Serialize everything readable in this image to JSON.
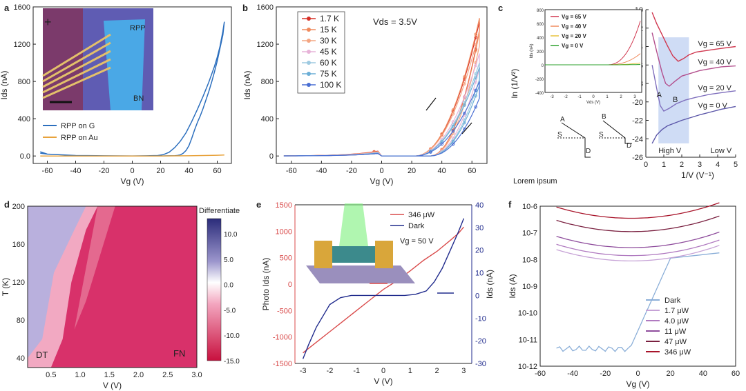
{
  "panels": {
    "a": {
      "letter": "a",
      "chart_data": {
        "type": "line",
        "xlabel": "Vg (V)",
        "ylabel": "Ids (nA)",
        "xlim": [
          -70,
          70
        ],
        "ylim": [
          -80,
          1600
        ],
        "xticks": [
          -60,
          -40,
          -20,
          0,
          20,
          40,
          60
        ],
        "yticks": [
          0,
          400,
          800,
          1200,
          1600
        ],
        "series": [
          {
            "name": "RPP on G",
            "color": "#2c6fbe",
            "x": [
              -65,
              -60,
              -40,
              -20,
              0,
              10,
              18,
              22,
              26,
              30,
              34,
              38,
              42,
              46,
              50,
              54,
              58,
              60,
              62,
              64,
              65,
              64,
              62,
              60,
              58,
              56,
              54,
              52,
              50,
              48,
              46,
              44,
              42,
              40,
              38,
              36,
              34,
              32,
              30,
              26,
              20,
              10,
              0,
              -20,
              -40,
              -60,
              -65
            ],
            "y": [
              30,
              20,
              5,
              2,
              1,
              2,
              5,
              15,
              40,
              90,
              160,
              250,
              370,
              500,
              640,
              790,
              960,
              1060,
              1180,
              1340,
              1440,
              1300,
              1160,
              1020,
              900,
              790,
              690,
              600,
              510,
              430,
              360,
              280,
              190,
              110,
              60,
              30,
              12,
              6,
              3,
              2,
              1,
              0,
              0,
              0,
              5,
              20,
              45
            ]
          },
          {
            "name": "RPP on Au",
            "color": "#e8a33c",
            "x": [
              -65,
              -40,
              -20,
              0,
              20,
              40,
              50,
              60,
              65
            ],
            "y": [
              0,
              0,
              0,
              0,
              0,
              2,
              5,
              8,
              10
            ]
          }
        ],
        "inset": {
          "labels": [
            "RPP",
            "BN"
          ]
        }
      }
    },
    "b": {
      "letter": "b",
      "annotation": "Vds = 3.5V",
      "chart_data": {
        "type": "line",
        "xlabel": "Vg (V)",
        "ylabel": "Ids (nA)",
        "xlim": [
          -70,
          70
        ],
        "ylim": [
          -80,
          1600
        ],
        "xticks": [
          -60,
          -40,
          -20,
          0,
          20,
          40,
          60
        ],
        "yticks": [
          0,
          400,
          800,
          1200,
          1600
        ],
        "series": [
          {
            "name": "1.7 K",
            "color": "#d73027",
            "peak": 1440,
            "hyst": 0.75
          },
          {
            "name": "15 K",
            "color": "#f08a5d",
            "peak": 1480,
            "hyst": 0.72
          },
          {
            "name": "30 K",
            "color": "#f4a582",
            "peak": 1350,
            "hyst": 0.7
          },
          {
            "name": "45 K",
            "color": "#e7b3d8",
            "peak": 1100,
            "hyst": 0.68
          },
          {
            "name": "60 K",
            "color": "#9ecae1",
            "peak": 1000,
            "hyst": 0.66
          },
          {
            "name": "75 K",
            "color": "#6baed6",
            "peak": 950,
            "hyst": 0.64
          },
          {
            "name": "100 K",
            "color": "#4a6fd3",
            "peak": 800,
            "hyst": 0.62
          }
        ]
      }
    },
    "c": {
      "letter": "c",
      "bottom_text": "Lorem ipsum",
      "chart_data": {
        "type": "line",
        "xlabel": "1/V (V⁻¹)",
        "ylabel": "ln (1/V²)",
        "xlim": [
          0,
          5
        ],
        "ylim": [
          -26,
          -10
        ],
        "xticks": [
          0,
          1,
          2,
          3,
          4,
          5
        ],
        "yticks": [
          -10,
          -12,
          -14,
          -16,
          -18,
          -20,
          -22,
          -24,
          -26
        ],
        "series": [
          {
            "name": "Vg = 65 V",
            "color": "#d0364e",
            "x": [
              0.35,
              0.6,
              0.9,
              1.2,
              1.5,
              1.8,
              2.1,
              2.4,
              2.8,
              3.5,
              4.2,
              5.0
            ],
            "y": [
              -10.3,
              -11.5,
              -12.7,
              -13.9,
              -15.0,
              -15.6,
              -15.3,
              -14.9,
              -14.6,
              -14.4,
              -14.2,
              -14.0
            ]
          },
          {
            "name": "Vg = 40 V",
            "color": "#b34f8d",
            "x": [
              0.35,
              0.6,
              0.9,
              1.1,
              1.3,
              1.6,
              2.0,
              2.5,
              3.0,
              3.6,
              4.2,
              5.0
            ],
            "y": [
              -12.5,
              -14.5,
              -16.8,
              -18.0,
              -18.3,
              -17.8,
              -17.2,
              -16.9,
              -16.6,
              -16.4,
              -16.2,
              -16.1
            ]
          },
          {
            "name": "Vg = 20 V",
            "color": "#7f6fbd",
            "x": [
              0.35,
              0.6,
              0.8,
              1.0,
              1.3,
              1.7,
              2.2,
              2.8,
              3.5,
              4.2,
              5.0
            ],
            "y": [
              -16.0,
              -18.5,
              -20.4,
              -21.0,
              -20.7,
              -20.2,
              -19.8,
              -19.5,
              -19.2,
              -19.0,
              -18.8
            ]
          },
          {
            "name": "Vg = 0 V",
            "color": "#5a55a8",
            "x": [
              0.35,
              0.6,
              0.9,
              1.2,
              1.6,
              2.0,
              2.5,
              3.0,
              3.6,
              4.2,
              5.0
            ],
            "y": [
              -24.5,
              -23.6,
              -23.0,
              -22.6,
              -22.3,
              -22.0,
              -21.7,
              -21.4,
              -21.1,
              -20.8,
              -20.5
            ]
          }
        ],
        "region": {
          "label_high": "High V",
          "label_low": "Low V",
          "x_range": [
            0.7,
            2.4
          ]
        },
        "markers": {
          "A": "A",
          "B": "B",
          "S": "S",
          "D": "D"
        },
        "inset": {
          "xlabel": "Vds (V)",
          "ylabel": "Ids (nA)",
          "yticks": [
            800,
            600,
            400,
            200,
            0,
            -200,
            -400
          ],
          "xticks": [
            -3,
            -2,
            -1,
            0,
            1,
            2,
            3
          ],
          "legend": [
            "Vg = 65 V",
            "Vg = 40 V",
            "Vg = 20 V",
            "Vg = 0 V"
          ],
          "colors": [
            "#d0364e",
            "#f08a5d",
            "#e8c33c",
            "#2ca02c"
          ]
        }
      }
    },
    "d": {
      "letter": "d",
      "chart_data": {
        "type": "heatmap",
        "xlabel": "V (V)",
        "ylabel": "T (K)",
        "xlim": [
          0.1,
          3.0
        ],
        "ylim": [
          30,
          200
        ],
        "xticks": [
          0.5,
          1.0,
          1.5,
          2.0,
          2.5,
          3.0
        ],
        "yticks": [
          40,
          80,
          120,
          160,
          200
        ],
        "colorbar": {
          "title": "Differentiate",
          "ticks": [
            10.0,
            5.0,
            0.0,
            -5.0,
            -10.0,
            -15.0
          ],
          "range": [
            -15,
            13
          ]
        },
        "regions": {
          "left": "DT",
          "right": "FN"
        }
      }
    },
    "e": {
      "letter": "e",
      "annotation": "Vg = 50 V",
      "chart_data": {
        "type": "line",
        "xlabel": "V (V)",
        "ylabel": "Photo Ids (nA)",
        "y2label": "Ids (nA)",
        "xlim": [
          -3.3,
          3.3
        ],
        "ylim": [
          -1500,
          1500
        ],
        "y2lim": [
          -30,
          40
        ],
        "xticks": [
          -3,
          -2,
          -1,
          0,
          1,
          2,
          3
        ],
        "yticks": [
          -1500,
          -1000,
          -500,
          0,
          500,
          1000,
          1500
        ],
        "y2ticks": [
          -30,
          -20,
          -10,
          0,
          10,
          20,
          30,
          40
        ],
        "series": [
          {
            "name": "346 μW",
            "color": "#d94a4a",
            "axis": "left",
            "x": [
              -3,
              -2.5,
              -2,
              -1.5,
              -1,
              -0.5,
              0,
              0.5,
              1,
              1.5,
              2,
              2.5,
              2.8,
              3
            ],
            "y": [
              -1300,
              -1100,
              -900,
              -700,
              -500,
              -300,
              -100,
              60,
              250,
              450,
              620,
              830,
              960,
              1080
            ]
          },
          {
            "name": "Dark",
            "color": "#1f2a8c",
            "axis": "right",
            "x": [
              -3,
              -2.8,
              -2.5,
              -2.2,
              -2,
              -1.6,
              -1.2,
              -0.8,
              0,
              0.8,
              1.2,
              1.6,
              1.9,
              2.2,
              2.5,
              2.8,
              3
            ],
            "y": [
              -28,
              -22,
              -14,
              -8,
              -4,
              -1,
              0,
              0,
              0,
              0,
              0.5,
              2,
              6,
              12,
              20,
              28,
              34
            ]
          }
        ]
      }
    },
    "f": {
      "letter": "f",
      "chart_data": {
        "type": "line",
        "xlabel": "Vg (V)",
        "ylabel": "Ids (A)",
        "xlim": [
          -60,
          60
        ],
        "ylim_log10": [
          -12,
          -6
        ],
        "xticks": [
          -60,
          -40,
          -20,
          0,
          20,
          40,
          60
        ],
        "yticklabels": [
          "10-6",
          "10-7",
          "10-8",
          "10-9",
          "10-10",
          "10-11",
          "10-12"
        ],
        "series": [
          {
            "name": "Dark",
            "color": "#8aaed8"
          },
          {
            "name": "1.7 μW",
            "color": "#c6a2d6"
          },
          {
            "name": "4.0 μW",
            "color": "#b07ac0"
          },
          {
            "name": "11 μW",
            "color": "#8e4c9c"
          },
          {
            "name": "47 μW",
            "color": "#7a2040"
          },
          {
            "name": "346 μW",
            "color": "#a8142a"
          }
        ]
      }
    }
  }
}
